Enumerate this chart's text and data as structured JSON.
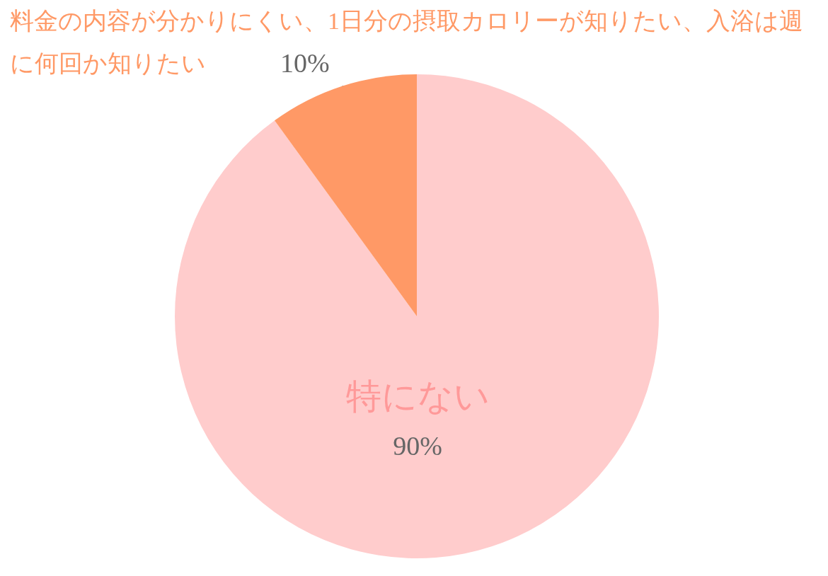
{
  "chart_data": {
    "type": "pie",
    "categories": [
      "特にない",
      "料金の内容が分かりにくい、1日分の摂取カロリーが知りたい、入浴は週に何回か知りたい"
    ],
    "values": [
      90,
      10
    ],
    "colors": [
      "#ffcccc",
      "#ff9966"
    ],
    "value_labels": [
      "90%",
      "10%"
    ]
  }
}
